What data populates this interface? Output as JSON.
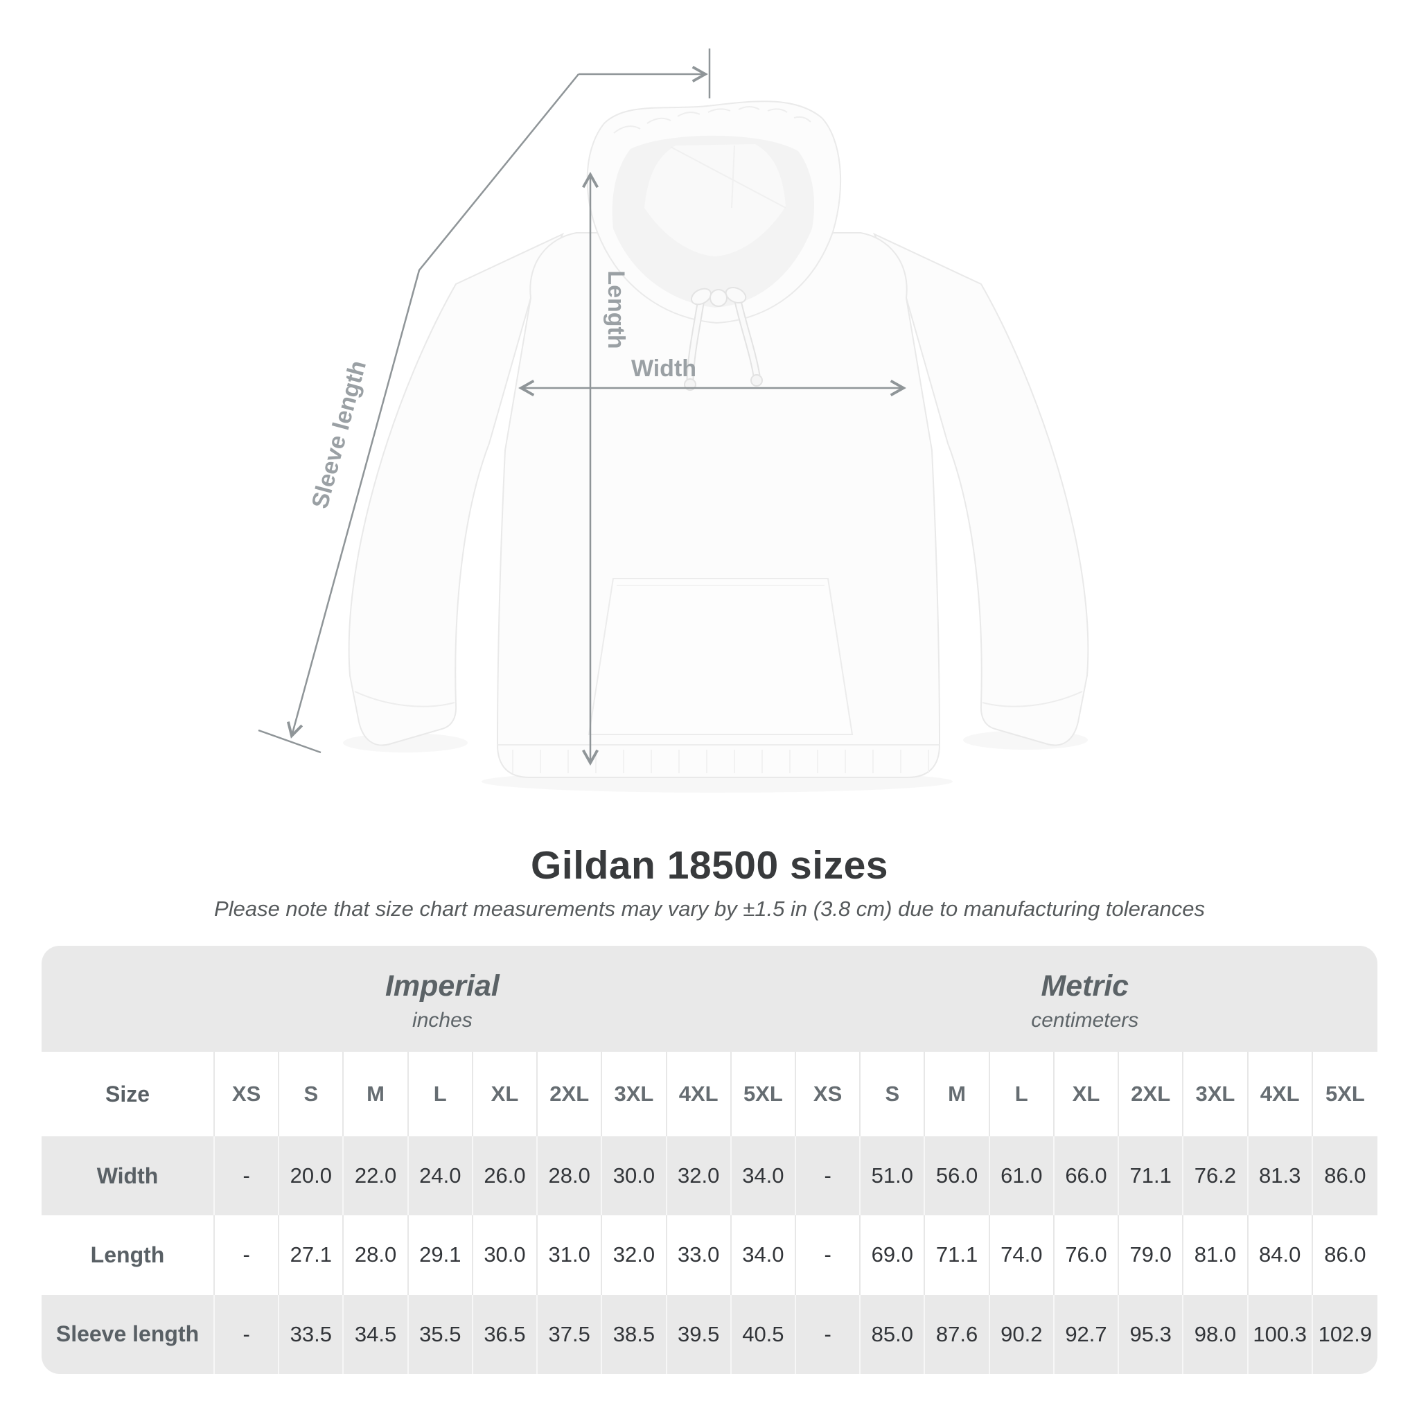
{
  "diagram": {
    "labels": {
      "length": "Length",
      "width": "Width",
      "sleeve": "Sleeve length"
    },
    "line_color": "#8f9598",
    "label_color": "#9aa0a4"
  },
  "heading": {
    "title": "Gildan 18500 sizes",
    "subtitle": "Please note that size chart measurements may vary by ±1.5 in (3.8 cm) due to manufacturing tolerances"
  },
  "table": {
    "background": "#e9e9e9",
    "size_header": "Size",
    "unit_groups": [
      {
        "name": "Imperial",
        "unit": "inches"
      },
      {
        "name": "Metric",
        "unit": "centimeters"
      }
    ],
    "sizes": [
      "XS",
      "S",
      "M",
      "L",
      "XL",
      "2XL",
      "3XL",
      "4XL",
      "5XL"
    ],
    "rows": [
      {
        "label": "Width",
        "imperial": [
          "-",
          "20.0",
          "22.0",
          "24.0",
          "26.0",
          "28.0",
          "30.0",
          "32.0",
          "34.0"
        ],
        "metric": [
          "-",
          "51.0",
          "56.0",
          "61.0",
          "66.0",
          "71.1",
          "76.2",
          "81.3",
          "86.0"
        ]
      },
      {
        "label": "Length",
        "imperial": [
          "-",
          "27.1",
          "28.0",
          "29.1",
          "30.0",
          "31.0",
          "32.0",
          "33.0",
          "34.0"
        ],
        "metric": [
          "-",
          "69.0",
          "71.1",
          "74.0",
          "76.0",
          "79.0",
          "81.0",
          "84.0",
          "86.0"
        ]
      },
      {
        "label": "Sleeve length",
        "imperial": [
          "-",
          "33.5",
          "34.5",
          "35.5",
          "36.5",
          "37.5",
          "38.5",
          "39.5",
          "40.5"
        ],
        "metric": [
          "-",
          "85.0",
          "87.6",
          "90.2",
          "92.7",
          "95.3",
          "98.0",
          "100.3",
          "102.9"
        ]
      }
    ]
  }
}
